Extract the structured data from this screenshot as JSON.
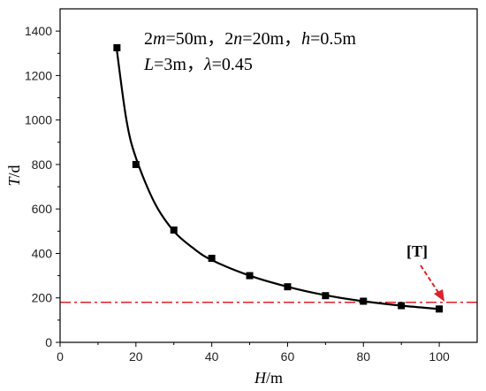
{
  "chart_data": {
    "type": "scatter",
    "xlabel": {
      "var": "H",
      "unit": "/m"
    },
    "ylabel": {
      "var": "T",
      "unit": "/d"
    },
    "xlim": [
      0,
      110
    ],
    "ylim": [
      0,
      1500
    ],
    "xticks": [
      0,
      20,
      40,
      60,
      80,
      100
    ],
    "yticks": [
      0,
      200,
      400,
      600,
      800,
      1000,
      1200,
      1400
    ],
    "grid": false,
    "series": [
      {
        "kind": "points",
        "marker": "square",
        "color": "#000000",
        "x": [
          15,
          20,
          30,
          40,
          50,
          60,
          70,
          80,
          90,
          100
        ],
        "y": [
          1325,
          800,
          505,
          378,
          300,
          250,
          210,
          185,
          165,
          150
        ]
      },
      {
        "kind": "fit-curve",
        "color": "#000000",
        "x": [
          15,
          17.5,
          20,
          25,
          30,
          35,
          40,
          50,
          60,
          70,
          80,
          90,
          100
        ],
        "y": [
          1310,
          1000,
          830,
          625,
          500,
          425,
          370,
          300,
          250,
          212,
          185,
          165,
          150
        ]
      }
    ],
    "reference_line": {
      "y": 180,
      "style": "dash-dot",
      "color": "#e0202a"
    },
    "annotations": {
      "line1": [
        {
          "text": "2",
          "italic": false
        },
        {
          "text": "m",
          "italic": true
        },
        {
          "text": "=50m，",
          "italic": false
        },
        {
          "text": "2",
          "italic": false
        },
        {
          "text": "n",
          "italic": true
        },
        {
          "text": "=20m，",
          "italic": false
        },
        {
          "text": "h",
          "italic": true
        },
        {
          "text": "=0.5m",
          "italic": false
        }
      ],
      "line2": [
        {
          "text": "L",
          "italic": true
        },
        {
          "text": "=3m，",
          "italic": false
        },
        {
          "text": "λ",
          "italic": true
        },
        {
          "text": "=0.45",
          "italic": false
        }
      ],
      "ref_label": "[T]",
      "arrow_color": "#e0202a"
    }
  }
}
